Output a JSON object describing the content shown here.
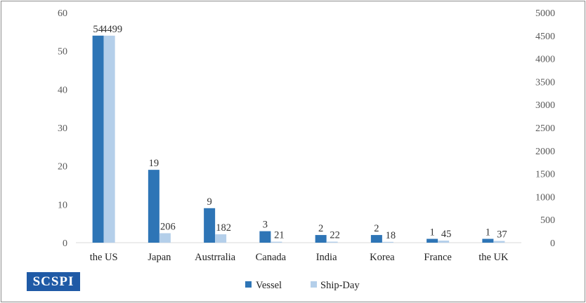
{
  "colors": {
    "vessel": "#2e75b6",
    "shipday": "#b4cfea",
    "axis_text": "#595959",
    "grid": "#d9d9d9",
    "logo_bg": "#1f5aa6"
  },
  "logo": {
    "text": "SCSPI"
  },
  "chart_data": {
    "type": "bar",
    "categories": [
      "the US",
      "Japan",
      "Austrralia",
      "Canada",
      "India",
      "Korea",
      "France",
      "the UK"
    ],
    "series": [
      {
        "name": "Vessel",
        "axis": "left",
        "values": [
          54,
          19,
          9,
          3,
          2,
          2,
          1,
          1
        ]
      },
      {
        "name": "Ship-Day",
        "axis": "right",
        "values": [
          4499,
          206,
          182,
          21,
          22,
          18,
          45,
          37
        ]
      }
    ],
    "y_left": {
      "lim": [
        0,
        60
      ],
      "ticks": [
        0,
        10,
        20,
        30,
        40,
        50,
        60
      ]
    },
    "y_right": {
      "lim": [
        0,
        5000
      ],
      "ticks": [
        0,
        500,
        1000,
        1500,
        2000,
        2500,
        3000,
        3500,
        4000,
        4500,
        5000
      ]
    },
    "legend_position": "bottom",
    "grid": false
  }
}
